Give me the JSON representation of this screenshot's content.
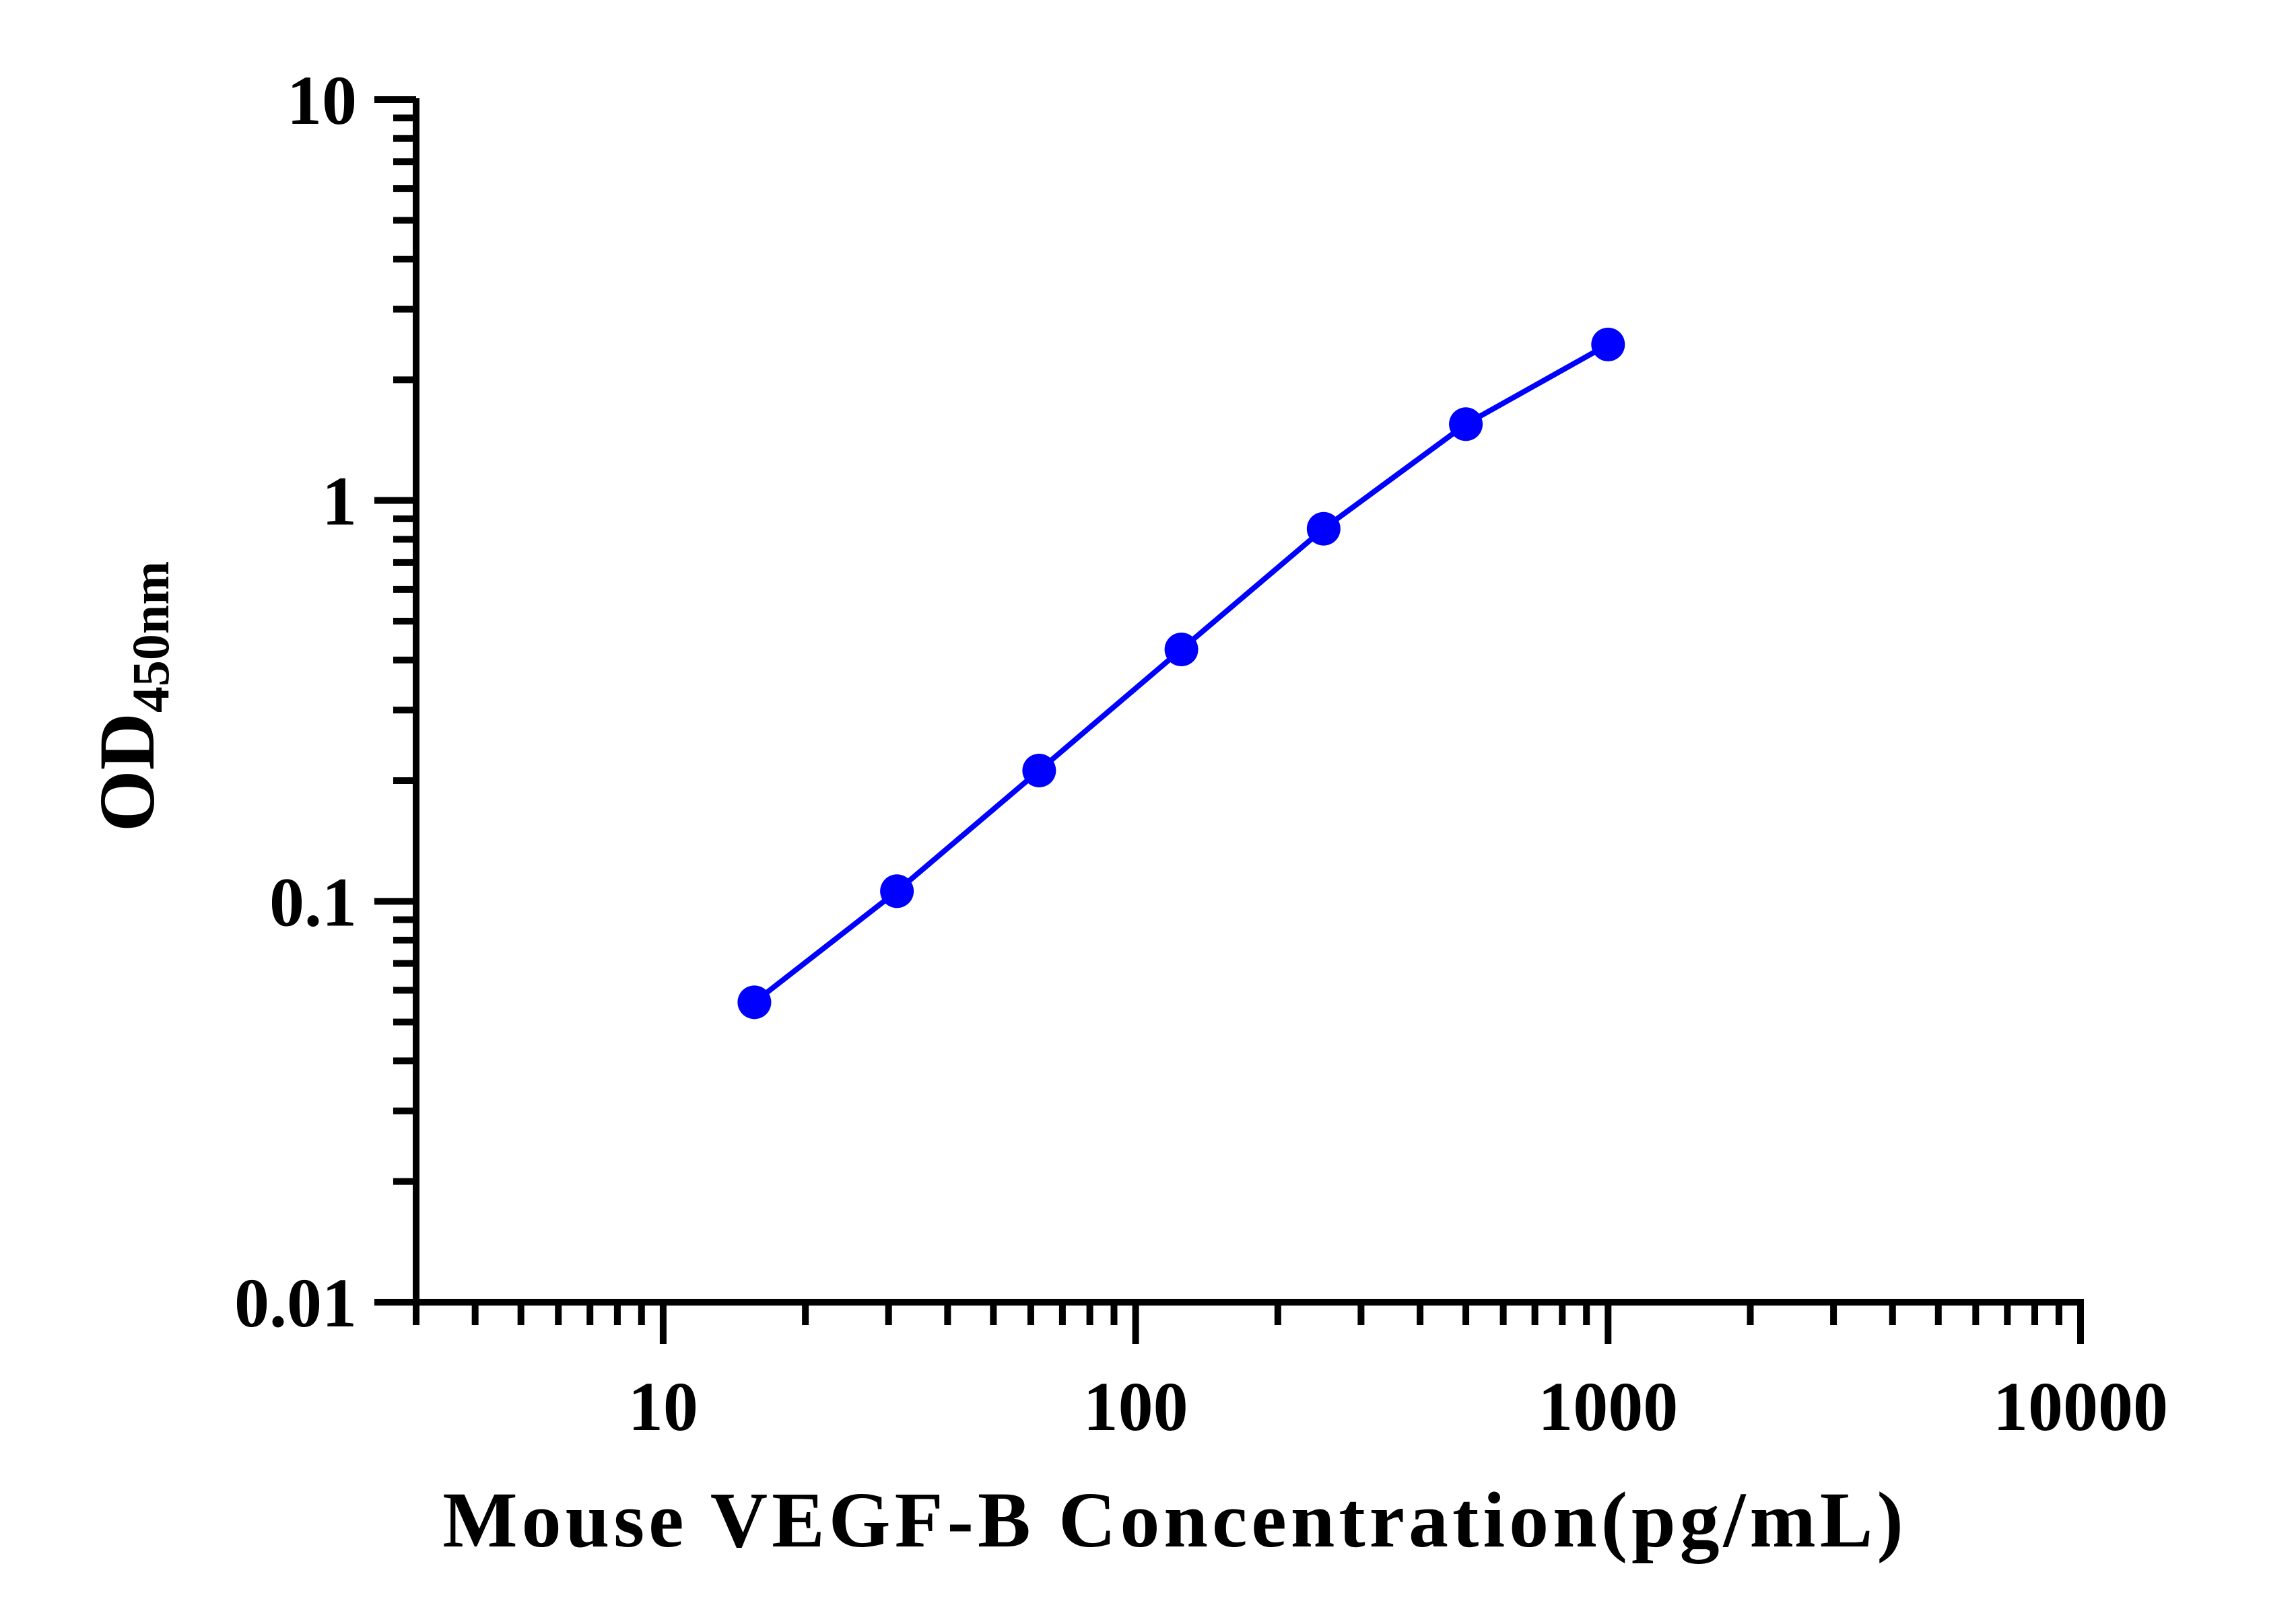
{
  "chart_data": {
    "type": "line",
    "xlabel": "Mouse VEGF-B Concentration(pg/mL)",
    "ylabel": "OD",
    "ylabel_subscript": "450nm",
    "x_scale": "log",
    "y_scale": "log",
    "xlim": [
      3,
      10000
    ],
    "ylim": [
      0.01,
      10
    ],
    "x_ticks": [
      {
        "value": 10,
        "label": "10"
      },
      {
        "value": 100,
        "label": "100"
      },
      {
        "value": 1000,
        "label": "1000"
      },
      {
        "value": 10000,
        "label": "10000"
      }
    ],
    "y_ticks": [
      {
        "value": 0.01,
        "label": "0.01"
      },
      {
        "value": 0.1,
        "label": "0.1"
      },
      {
        "value": 1,
        "label": "1"
      },
      {
        "value": 10,
        "label": "10"
      }
    ],
    "grid": false,
    "legend": "none",
    "series": [
      {
        "color": "#0000ff",
        "x": [
          15.6,
          31.25,
          62.5,
          125,
          250,
          500,
          1000
        ],
        "y": [
          0.056,
          0.106,
          0.212,
          0.425,
          0.85,
          1.55,
          2.45
        ]
      }
    ]
  }
}
